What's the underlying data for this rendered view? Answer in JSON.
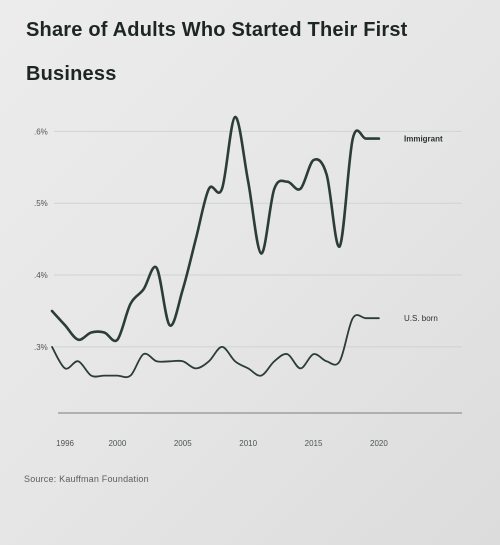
{
  "chart_data": {
    "type": "line",
    "title": "Share of Adults Who Started Their First Business",
    "xlabel": "",
    "ylabel": "",
    "xlim": [
      1995,
      2021
    ],
    "ylim": [
      0.24,
      0.62
    ],
    "x_ticks": [
      {
        "value": 1996,
        "label": "1996"
      },
      {
        "value": 2000,
        "label": "2000"
      },
      {
        "value": 2005,
        "label": "2005"
      },
      {
        "value": 2010,
        "label": "2010"
      },
      {
        "value": 2015,
        "label": "2015"
      },
      {
        "value": 2020,
        "label": "2020"
      }
    ],
    "y_ticks": [
      {
        "value": 0.3,
        "label": ".3%"
      },
      {
        "value": 0.4,
        "label": ".4%"
      },
      {
        "value": 0.5,
        "label": ".5%"
      },
      {
        "value": 0.6,
        "label": ".6%"
      }
    ],
    "grid": "horizontal",
    "series": [
      {
        "name": "Immigrant",
        "color": "#2b3d36",
        "x": [
          1995,
          1996,
          1997,
          1998,
          1999,
          2000,
          2001,
          2002,
          2003,
          2004,
          2005,
          2006,
          2007,
          2008,
          2009,
          2010,
          2011,
          2012,
          2013,
          2014,
          2015,
          2016,
          2017,
          2018,
          2019,
          2020
        ],
        "values": [
          0.35,
          0.33,
          0.31,
          0.32,
          0.32,
          0.31,
          0.36,
          0.38,
          0.41,
          0.33,
          0.38,
          0.45,
          0.52,
          0.52,
          0.62,
          0.53,
          0.43,
          0.52,
          0.53,
          0.52,
          0.56,
          0.54,
          0.44,
          0.59,
          0.59,
          0.59
        ]
      },
      {
        "name": "U.S. born",
        "color": "#2b3d36",
        "x": [
          1995,
          1996,
          1997,
          1998,
          1999,
          2000,
          2001,
          2002,
          2003,
          2004,
          2005,
          2006,
          2007,
          2008,
          2009,
          2010,
          2011,
          2012,
          2013,
          2014,
          2015,
          2016,
          2017,
          2018,
          2019,
          2020
        ],
        "values": [
          0.3,
          0.27,
          0.28,
          0.26,
          0.26,
          0.26,
          0.26,
          0.29,
          0.28,
          0.28,
          0.28,
          0.27,
          0.28,
          0.3,
          0.28,
          0.27,
          0.26,
          0.28,
          0.29,
          0.27,
          0.29,
          0.28,
          0.28,
          0.34,
          0.34,
          0.34
        ]
      }
    ],
    "source": "Source: Kauffman Foundation"
  }
}
